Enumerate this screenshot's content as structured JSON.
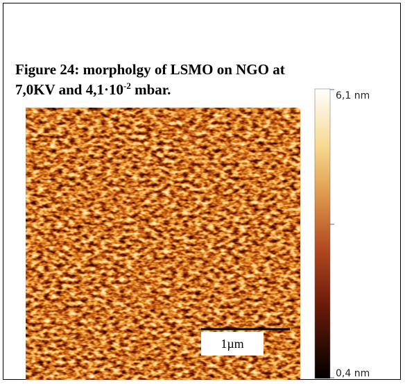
{
  "figure": {
    "caption": {
      "line1": "Figure 24: morpholgy of LSMO on NGO at",
      "line2_main": "7,0KV and 4,1·10",
      "line2_sup": "-2",
      "line2_end": " mbar."
    },
    "scale_bar": "1µm",
    "colorbar": {
      "max_label": "6,1 nm",
      "min_label": "0,4 nm"
    }
  }
}
